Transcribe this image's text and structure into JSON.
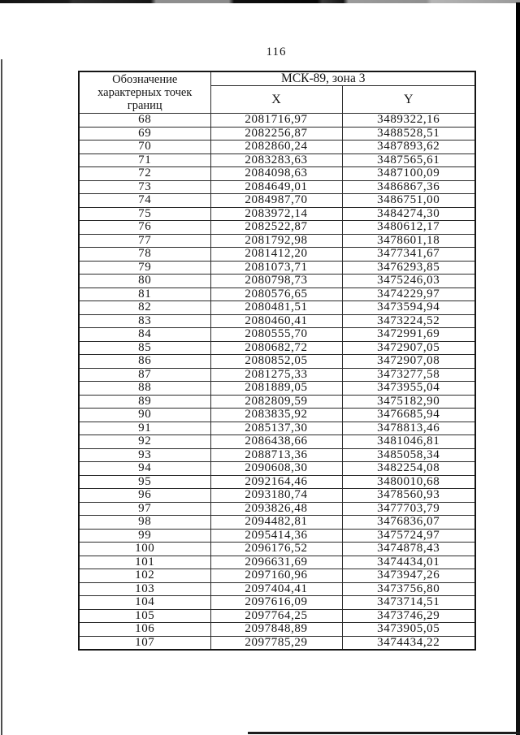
{
  "page_number": "116",
  "table": {
    "point_header_lines": [
      "Обозначение",
      "характерных точек",
      "границ"
    ],
    "crs_header": "МСК-89, зона 3",
    "x_header": "X",
    "y_header": "Y",
    "rows": [
      {
        "n": "68",
        "x": "2081716,97",
        "y": "3489322,16"
      },
      {
        "n": "69",
        "x": "2082256,87",
        "y": "3488528,51"
      },
      {
        "n": "70",
        "x": "2082860,24",
        "y": "3487893,62"
      },
      {
        "n": "71",
        "x": "2083283,63",
        "y": "3487565,61"
      },
      {
        "n": "72",
        "x": "2084098,63",
        "y": "3487100,09"
      },
      {
        "n": "73",
        "x": "2084649,01",
        "y": "3486867,36"
      },
      {
        "n": "74",
        "x": "2084987,70",
        "y": "3486751,00"
      },
      {
        "n": "75",
        "x": "2083972,14",
        "y": "3484274,30"
      },
      {
        "n": "76",
        "x": "2082522,87",
        "y": "3480612,17"
      },
      {
        "n": "77",
        "x": "2081792,98",
        "y": "3478601,18"
      },
      {
        "n": "78",
        "x": "2081412,20",
        "y": "3477341,67"
      },
      {
        "n": "79",
        "x": "2081073,71",
        "y": "3476293,85"
      },
      {
        "n": "80",
        "x": "2080798,73",
        "y": "3475246,03"
      },
      {
        "n": "81",
        "x": "2080576,65",
        "y": "3474229,97"
      },
      {
        "n": "82",
        "x": "2080481,51",
        "y": "3473594,94"
      },
      {
        "n": "83",
        "x": "2080460,41",
        "y": "3473224,52"
      },
      {
        "n": "84",
        "x": "2080555,70",
        "y": "3472991,69"
      },
      {
        "n": "85",
        "x": "2080682,72",
        "y": "3472907,05"
      },
      {
        "n": "86",
        "x": "2080852,05",
        "y": "3472907,08"
      },
      {
        "n": "87",
        "x": "2081275,33",
        "y": "3473277,58"
      },
      {
        "n": "88",
        "x": "2081889,05",
        "y": "3473955,04"
      },
      {
        "n": "89",
        "x": "2082809,59",
        "y": "3475182,90"
      },
      {
        "n": "90",
        "x": "2083835,92",
        "y": "3476685,94"
      },
      {
        "n": "91",
        "x": "2085137,30",
        "y": "3478813,46"
      },
      {
        "n": "92",
        "x": "2086438,66",
        "y": "3481046,81"
      },
      {
        "n": "93",
        "x": "2088713,36",
        "y": "3485058,34"
      },
      {
        "n": "94",
        "x": "2090608,30",
        "y": "3482254,08"
      },
      {
        "n": "95",
        "x": "2092164,46",
        "y": "3480010,68"
      },
      {
        "n": "96",
        "x": "2093180,74",
        "y": "3478560,93"
      },
      {
        "n": "97",
        "x": "2093826,48",
        "y": "3477703,79"
      },
      {
        "n": "98",
        "x": "2094482,81",
        "y": "3476836,07"
      },
      {
        "n": "99",
        "x": "2095414,36",
        "y": "3475724,97"
      },
      {
        "n": "100",
        "x": "2096176,52",
        "y": "3474878,43"
      },
      {
        "n": "101",
        "x": "2096631,69",
        "y": "3474434,01"
      },
      {
        "n": "102",
        "x": "2097160,96",
        "y": "3473947,26"
      },
      {
        "n": "103",
        "x": "2097404,41",
        "y": "3473756,80"
      },
      {
        "n": "104",
        "x": "2097616,09",
        "y": "3473714,51"
      },
      {
        "n": "105",
        "x": "2097764,25",
        "y": "3473746,29"
      },
      {
        "n": "106",
        "x": "2097848,89",
        "y": "3473905,05"
      },
      {
        "n": "107",
        "x": "2097785,29",
        "y": "3474434,22"
      }
    ]
  }
}
